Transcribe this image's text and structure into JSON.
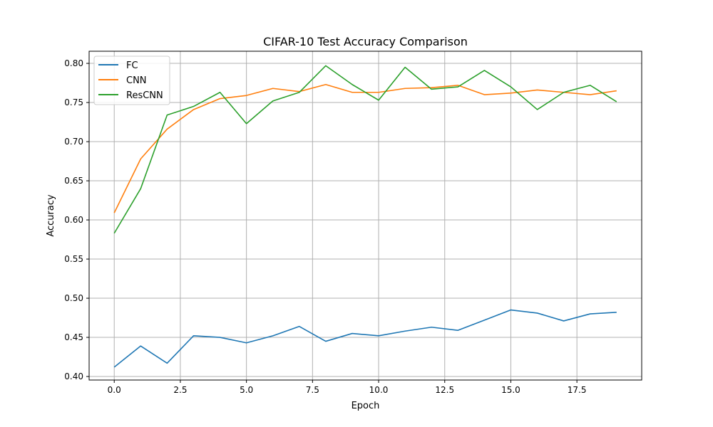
{
  "chart_data": {
    "type": "line",
    "title": "CIFAR-10 Test Accuracy Comparison",
    "xlabel": "Epoch",
    "ylabel": "Accuracy",
    "xlim": [
      -0.95,
      19.95
    ],
    "ylim": [
      0.3955,
      0.8155
    ],
    "xticks": [
      0.0,
      2.5,
      5.0,
      7.5,
      10.0,
      12.5,
      15.0,
      17.5
    ],
    "xtick_labels": [
      "0.0",
      "2.5",
      "5.0",
      "7.5",
      "10.0",
      "12.5",
      "15.0",
      "17.5"
    ],
    "yticks": [
      0.4,
      0.45,
      0.5,
      0.55,
      0.6,
      0.65,
      0.7,
      0.75,
      0.8
    ],
    "ytick_labels": [
      "0.40",
      "0.45",
      "0.50",
      "0.55",
      "0.60",
      "0.65",
      "0.70",
      "0.75",
      "0.80"
    ],
    "grid": true,
    "legend_position": "top-left",
    "x": [
      0,
      1,
      2,
      3,
      4,
      5,
      6,
      7,
      8,
      9,
      10,
      11,
      12,
      13,
      14,
      15,
      16,
      17,
      18,
      19
    ],
    "series": [
      {
        "name": "FC",
        "color": "#1f77b4",
        "values": [
          0.412,
          0.439,
          0.417,
          0.452,
          0.45,
          0.443,
          0.452,
          0.464,
          0.445,
          0.455,
          0.452,
          0.458,
          0.463,
          0.459,
          0.472,
          0.485,
          0.481,
          0.471,
          0.48,
          0.482
        ]
      },
      {
        "name": "CNN",
        "color": "#ff7f0e",
        "values": [
          0.609,
          0.678,
          0.716,
          0.741,
          0.755,
          0.759,
          0.768,
          0.764,
          0.773,
          0.763,
          0.763,
          0.768,
          0.769,
          0.772,
          0.76,
          0.762,
          0.766,
          0.763,
          0.76,
          0.765
        ]
      },
      {
        "name": "ResCNN",
        "color": "#2ca02c",
        "values": [
          0.583,
          0.64,
          0.734,
          0.745,
          0.763,
          0.723,
          0.752,
          0.763,
          0.797,
          0.773,
          0.753,
          0.795,
          0.767,
          0.77,
          0.791,
          0.77,
          0.741,
          0.763,
          0.772,
          0.751
        ]
      }
    ]
  }
}
